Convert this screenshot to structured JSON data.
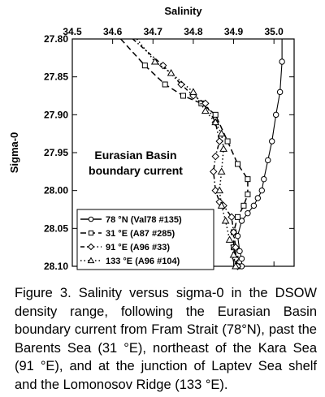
{
  "chart_data": {
    "type": "line",
    "title": "",
    "xlabel": "Salinity",
    "ylabel": "Sigma-0",
    "x_axis_position": "top",
    "y_axis_inverted": true,
    "xlim": [
      34.5,
      35.05
    ],
    "ylim": [
      27.8,
      28.1
    ],
    "x_ticks": [
      "34.5",
      "34.6",
      "34.7",
      "34.8",
      "34.9",
      "35.0"
    ],
    "y_ticks": [
      "27.80",
      "27.85",
      "27.90",
      "27.95",
      "28.00",
      "28.05",
      "28.10"
    ],
    "annotation": [
      "Eurasian Basin",
      "boundary current"
    ],
    "legend_position": "bottom-left",
    "grid": false,
    "series": [
      {
        "name": "78 °N (Val78 #135)",
        "marker": "circle",
        "line_style": "solid",
        "points": [
          [
            35.02,
            27.8
          ],
          [
            35.02,
            27.83
          ],
          [
            35.015,
            27.87
          ],
          [
            35.005,
            27.9
          ],
          [
            34.995,
            27.935
          ],
          [
            34.985,
            27.96
          ],
          [
            34.975,
            27.985
          ],
          [
            34.97,
            28.0
          ],
          [
            34.96,
            28.01
          ],
          [
            34.95,
            28.02
          ],
          [
            34.935,
            28.03
          ],
          [
            34.92,
            28.04
          ],
          [
            34.91,
            28.06
          ],
          [
            34.915,
            28.08
          ],
          [
            34.92,
            28.09
          ],
          [
            34.92,
            28.1
          ]
        ]
      },
      {
        "name": "31 °E (A87 #285)",
        "marker": "square",
        "line_style": "dashed",
        "points": [
          [
            34.62,
            27.8
          ],
          [
            34.68,
            27.835
          ],
          [
            34.73,
            27.86
          ],
          [
            34.775,
            27.875
          ],
          [
            34.82,
            27.885
          ],
          [
            34.855,
            27.9
          ],
          [
            34.885,
            27.935
          ],
          [
            34.91,
            27.965
          ],
          [
            34.935,
            27.985
          ],
          [
            34.935,
            28.005
          ],
          [
            34.925,
            28.02
          ],
          [
            34.91,
            28.035
          ],
          [
            34.9,
            28.055
          ],
          [
            34.9,
            28.075
          ],
          [
            34.905,
            28.09
          ],
          [
            34.91,
            28.1
          ]
        ]
      },
      {
        "name": "91 °E (A96 #33)",
        "marker": "diamond",
        "line_style": "dash-dot",
        "points": [
          [
            34.65,
            27.8
          ],
          [
            34.725,
            27.835
          ],
          [
            34.77,
            27.86
          ],
          [
            34.8,
            27.875
          ],
          [
            34.83,
            27.885
          ],
          [
            34.855,
            27.91
          ],
          [
            34.865,
            27.935
          ],
          [
            34.855,
            27.955
          ],
          [
            34.85,
            27.975
          ],
          [
            34.855,
            28.0
          ],
          [
            34.865,
            28.015
          ],
          [
            34.875,
            28.02
          ],
          [
            34.895,
            28.035
          ],
          [
            34.9,
            28.055
          ],
          [
            34.905,
            28.075
          ],
          [
            34.905,
            28.09
          ],
          [
            34.91,
            28.1
          ]
        ]
      },
      {
        "name": "133 °E (A96 #104)",
        "marker": "triangle",
        "line_style": "dotted",
        "points": [
          [
            34.66,
            27.8
          ],
          [
            34.705,
            27.83
          ],
          [
            34.745,
            27.845
          ],
          [
            34.8,
            27.87
          ],
          [
            34.83,
            27.895
          ],
          [
            34.855,
            27.91
          ],
          [
            34.87,
            27.925
          ],
          [
            34.875,
            27.945
          ],
          [
            34.87,
            27.975
          ],
          [
            34.865,
            28.0
          ],
          [
            34.87,
            28.02
          ],
          [
            34.88,
            28.04
          ],
          [
            34.89,
            28.065
          ],
          [
            34.9,
            28.085
          ],
          [
            34.905,
            28.1
          ]
        ]
      }
    ]
  },
  "caption": "Figure 3. Salinity versus sigma-0 in the DSOW density range, following the Eurasian Basin boundary current from Fram Strait (78°N), past the Barents Sea (31 °E), northeast of the Kara Sea (91 °E), and at the junction of Laptev Sea shelf and the Lomonosov Ridge (133 °E)."
}
